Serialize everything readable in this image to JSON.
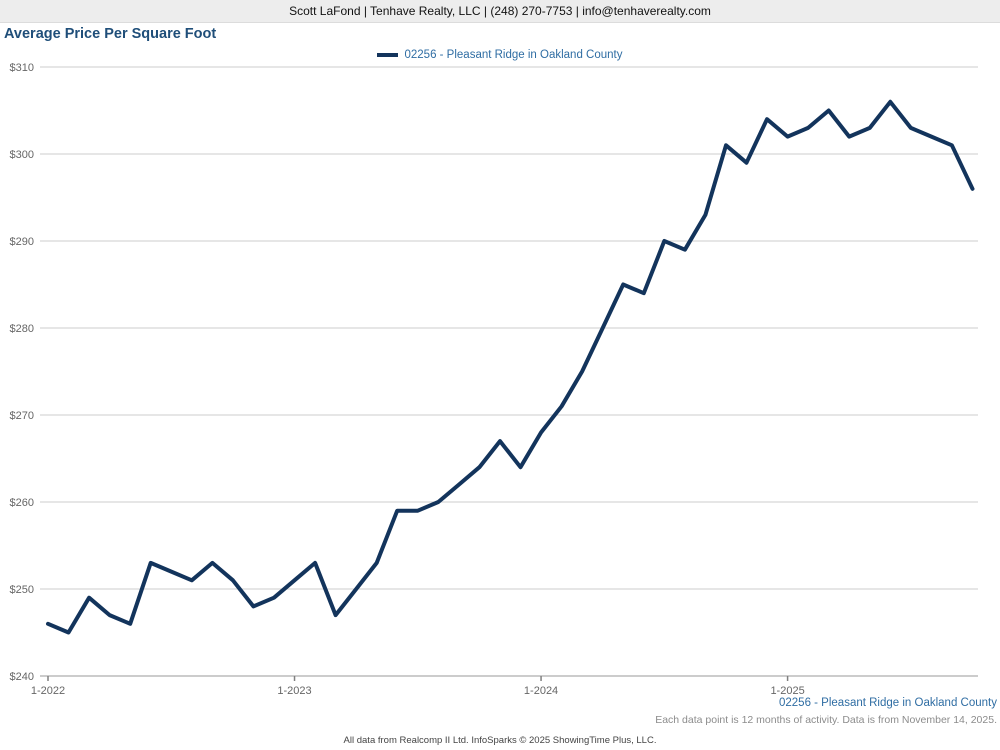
{
  "header": {
    "contact_line": "Scott LaFond | Tenhave Realty, LLC | (248) 270-7753 | info@tenhaverealty.com"
  },
  "title": "Average Price Per Square Foot",
  "legend": {
    "label": "02256 - Pleasant Ridge in Oakland County",
    "swatch_color": "#13345c"
  },
  "chart_data": {
    "type": "line",
    "title": "Average Price Per Square Foot",
    "x": [
      "1-2022",
      "2-2022",
      "3-2022",
      "4-2022",
      "5-2022",
      "6-2022",
      "7-2022",
      "8-2022",
      "9-2022",
      "10-2022",
      "11-2022",
      "12-2022",
      "1-2023",
      "2-2023",
      "3-2023",
      "4-2023",
      "5-2023",
      "6-2023",
      "7-2023",
      "8-2023",
      "9-2023",
      "10-2023",
      "11-2023",
      "12-2023",
      "1-2024",
      "2-2024",
      "3-2024",
      "4-2024",
      "5-2024",
      "6-2024",
      "7-2024",
      "8-2024",
      "9-2024",
      "10-2024",
      "11-2024",
      "12-2024",
      "1-2025",
      "2-2025",
      "3-2025",
      "4-2025",
      "5-2025",
      "6-2025",
      "7-2025",
      "8-2025",
      "9-2025",
      "10-2025"
    ],
    "series": [
      {
        "name": "02256 - Pleasant Ridge in Oakland County",
        "color": "#13345c",
        "values": [
          246,
          245,
          249,
          247,
          246,
          253,
          252,
          251,
          253,
          251,
          248,
          249,
          251,
          253,
          247,
          250,
          253,
          259,
          259,
          260,
          262,
          264,
          267,
          264,
          268,
          271,
          275,
          280,
          285,
          284,
          290,
          289,
          293,
          301,
          299,
          304,
          302,
          303,
          305,
          302,
          303,
          306,
          303,
          302,
          301,
          296
        ]
      }
    ],
    "ylim": [
      240,
      310
    ],
    "y_ticks": [
      240,
      250,
      260,
      270,
      280,
      290,
      300,
      310
    ],
    "y_tick_prefix": "$",
    "x_tick_labels": [
      "1-2022",
      "1-2023",
      "1-2024",
      "1-2025"
    ],
    "x_tick_positions": [
      0,
      12,
      24,
      36
    ],
    "grid": "horizontal",
    "legend_position": "top-center",
    "colors": {
      "line": "#13345c",
      "gridline": "#cccccc",
      "axis": "#999999",
      "tick": "#808080",
      "axis_text": "#666666"
    }
  },
  "footer": {
    "series_label": "02256 - Pleasant Ridge in Oakland County",
    "note": "Each data point is 12 months of activity. Data is from November 14, 2025.",
    "credit": "All data from Realcomp II Ltd. InfoSparks © 2025 ShowingTime Plus, LLC."
  }
}
